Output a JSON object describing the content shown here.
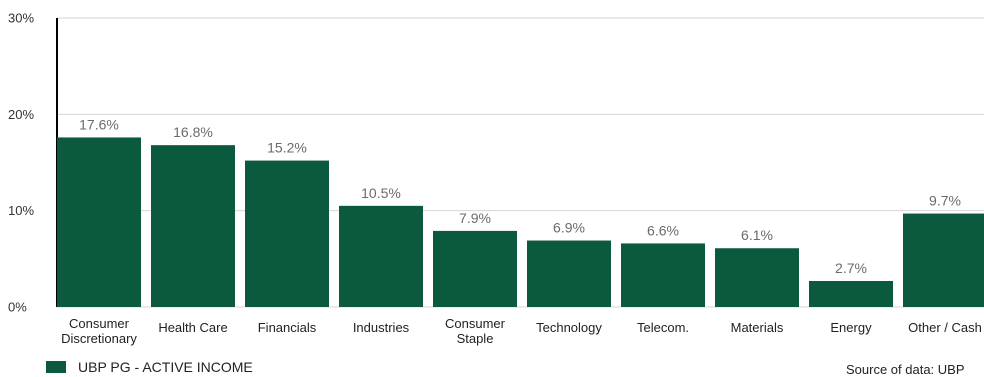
{
  "chart_data": {
    "type": "bar",
    "categories": [
      [
        "Consumer",
        "Discretionary"
      ],
      [
        "Health Care"
      ],
      [
        "Financials"
      ],
      [
        "Industries"
      ],
      [
        "Consumer",
        "Staple"
      ],
      [
        "Technology"
      ],
      [
        "Telecom."
      ],
      [
        "Materials"
      ],
      [
        "Energy"
      ],
      [
        "Other / Cash"
      ]
    ],
    "series": [
      {
        "name": "UBP PG - ACTIVE INCOME",
        "values": [
          17.6,
          16.8,
          15.2,
          10.5,
          7.9,
          6.9,
          6.6,
          6.1,
          2.7,
          9.7
        ],
        "labels": [
          "17.6%",
          "16.8%",
          "15.2%",
          "10.5%",
          "7.9%",
          "6.9%",
          "6.6%",
          "6.1%",
          "2.7%",
          "9.7%"
        ],
        "color": "#0b5a3e"
      }
    ],
    "yticks": [
      {
        "value": 0,
        "label": "0%"
      },
      {
        "value": 10,
        "label": "10%"
      },
      {
        "value": 20,
        "label": "20%"
      },
      {
        "value": 30,
        "label": "30%"
      }
    ],
    "ylim": [
      0,
      30
    ],
    "grid": true,
    "legend": "bottom-left"
  },
  "source": "Source of data: UBP"
}
